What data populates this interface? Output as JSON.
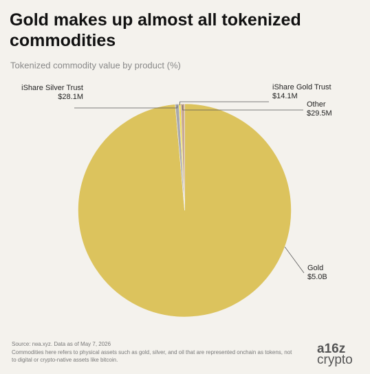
{
  "chart_data": {
    "type": "pie",
    "title": "Gold makes up almost all tokenized commodities",
    "subtitle": "Tokenized commodity value by product (%)",
    "categories": [
      "Gold",
      "iShare Silver Trust",
      "iShare Gold Trust",
      "Other"
    ],
    "values": [
      5000000000,
      28100000,
      14100000,
      29500000
    ],
    "value_labels": [
      "$5.0B",
      "$28.1M",
      "$14.1M",
      "$29.5M"
    ],
    "colors": [
      "#dcc35d",
      "#a8a8ae",
      "#f2df3c",
      "#c9a993"
    ],
    "source": "Source: rwa.xyz. Data as of May 7, 2026",
    "note": "Commodities here refers to physical assets such as gold, silver, and oil that are represented onchain as tokens, not to digital or crypto-native assets like bitcoin.",
    "logo": [
      "a16z",
      "crypto"
    ]
  }
}
